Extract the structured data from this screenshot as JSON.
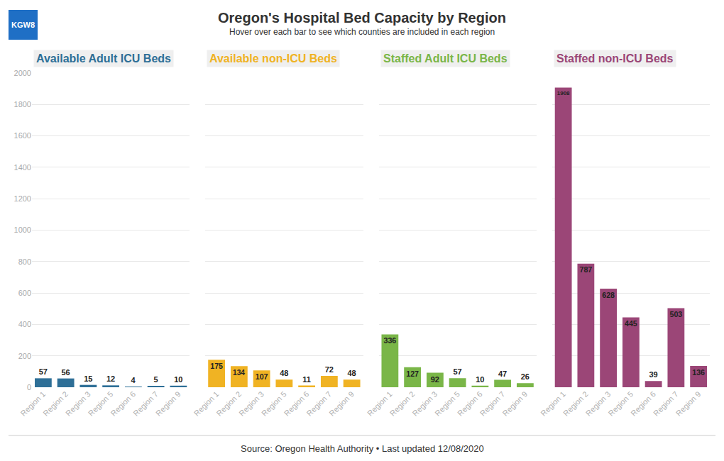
{
  "title": "Oregon's Hospital Bed Capacity by Region",
  "subtitle": "Hover over each bar to see which counties are included in each region",
  "source": "Source: Oregon Health Authority • Last updated 12/08/2020",
  "logo": "KGW8",
  "chart_data": [
    {
      "type": "bar",
      "title": "Available Adult ICU Beds",
      "categories": [
        "Region 1",
        "Region 2",
        "Region 3",
        "Region 5",
        "Region 6",
        "Region 7",
        "Region 9"
      ],
      "values": [
        57,
        56,
        15,
        12,
        4,
        5,
        10
      ],
      "color": "#2e6f97",
      "ylim": [
        0,
        2000
      ],
      "yticks": [
        0,
        200,
        400,
        600,
        800,
        1000,
        1200,
        1400,
        1600,
        1800,
        2000
      ],
      "grid": true,
      "data_labels": true
    },
    {
      "type": "bar",
      "title": "Available non-ICU Beds",
      "categories": [
        "Region 1",
        "Region 2",
        "Region 3",
        "Region 5",
        "Region 6",
        "Region 7",
        "Region 9"
      ],
      "values": [
        175,
        134,
        107,
        48,
        11,
        72,
        48
      ],
      "color": "#f0b323",
      "ylim": [
        0,
        2000
      ],
      "yticks": [
        0,
        200,
        400,
        600,
        800,
        1000,
        1200,
        1400,
        1600,
        1800,
        2000
      ],
      "grid": true,
      "data_labels": true,
      "tick_labels": "x"
    },
    {
      "type": "bar",
      "title": "Staffed Adult ICU Beds",
      "categories": [
        "Region 1",
        "Region 2",
        "Region 3",
        "Region 5",
        "Region 6",
        "Region 7",
        "Region 9"
      ],
      "values": [
        336,
        127,
        92,
        57,
        10,
        47,
        26
      ],
      "color": "#7ab648",
      "ylim": [
        0,
        2000
      ],
      "yticks": [
        0,
        200,
        400,
        600,
        800,
        1000,
        1200,
        1400,
        1600,
        1800,
        2000
      ],
      "grid": true,
      "data_labels": true,
      "tick_labels": "x"
    },
    {
      "type": "bar",
      "title": "Staffed non-ICU Beds",
      "categories": [
        "Region 1",
        "Region 2",
        "Region 3",
        "Region 5",
        "Region 6",
        "Region 7",
        "Region 9"
      ],
      "values": [
        1908,
        787,
        628,
        445,
        39,
        503,
        136
      ],
      "color": "#9b4677",
      "ylim": [
        0,
        2000
      ],
      "yticks": [
        0,
        200,
        400,
        600,
        800,
        1000,
        1200,
        1400,
        1600,
        1800,
        2000
      ],
      "grid": true,
      "data_labels": true,
      "tick_labels": "x"
    }
  ]
}
